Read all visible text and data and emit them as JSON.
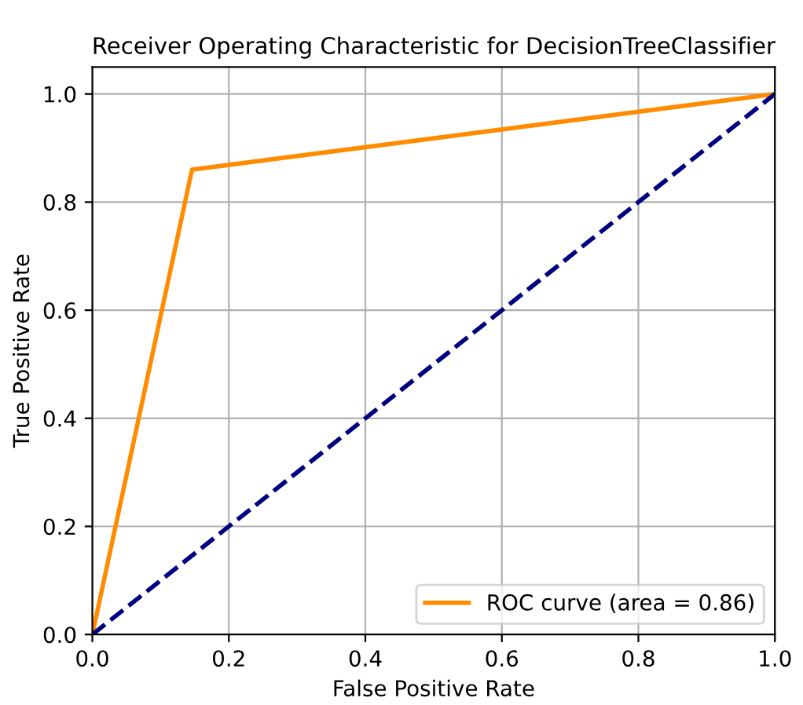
{
  "chart_data": {
    "type": "line",
    "title": "Receiver Operating Characteristic for DecisionTreeClassifier",
    "xlabel": "False Positive Rate",
    "ylabel": "True Positive Rate",
    "series": [
      {
        "name": "ROC curve (area = 0.86)",
        "color": "#ff8c00",
        "x": [
          0,
          0.146,
          1
        ],
        "values": [
          0,
          0.86,
          1
        ],
        "line_style": "solid"
      },
      {
        "color": "#000080",
        "x": [
          0,
          1
        ],
        "values": [
          0,
          1
        ],
        "line_style": "dashed"
      }
    ],
    "xlim": [
      0,
      1
    ],
    "ylim": [
      0,
      1.05
    ],
    "xticks": [
      {
        "value": 0,
        "label": "0.0"
      },
      {
        "value": 0.2,
        "label": "0.2"
      },
      {
        "value": 0.4,
        "label": "0.4"
      },
      {
        "value": 0.6,
        "label": "0.6"
      },
      {
        "value": 0.8,
        "label": "0.8"
      },
      {
        "value": 1,
        "label": "1.0"
      }
    ],
    "yticks": [
      {
        "value": 0,
        "label": "0.0"
      },
      {
        "value": 0.2,
        "label": "0.2"
      },
      {
        "value": 0.4,
        "label": "0.4"
      },
      {
        "value": 0.6,
        "label": "0.6"
      },
      {
        "value": 0.8,
        "label": "0.8"
      },
      {
        "value": 1,
        "label": "1.0"
      }
    ],
    "grid": true,
    "legend": "bottom right",
    "marker": "none"
  }
}
